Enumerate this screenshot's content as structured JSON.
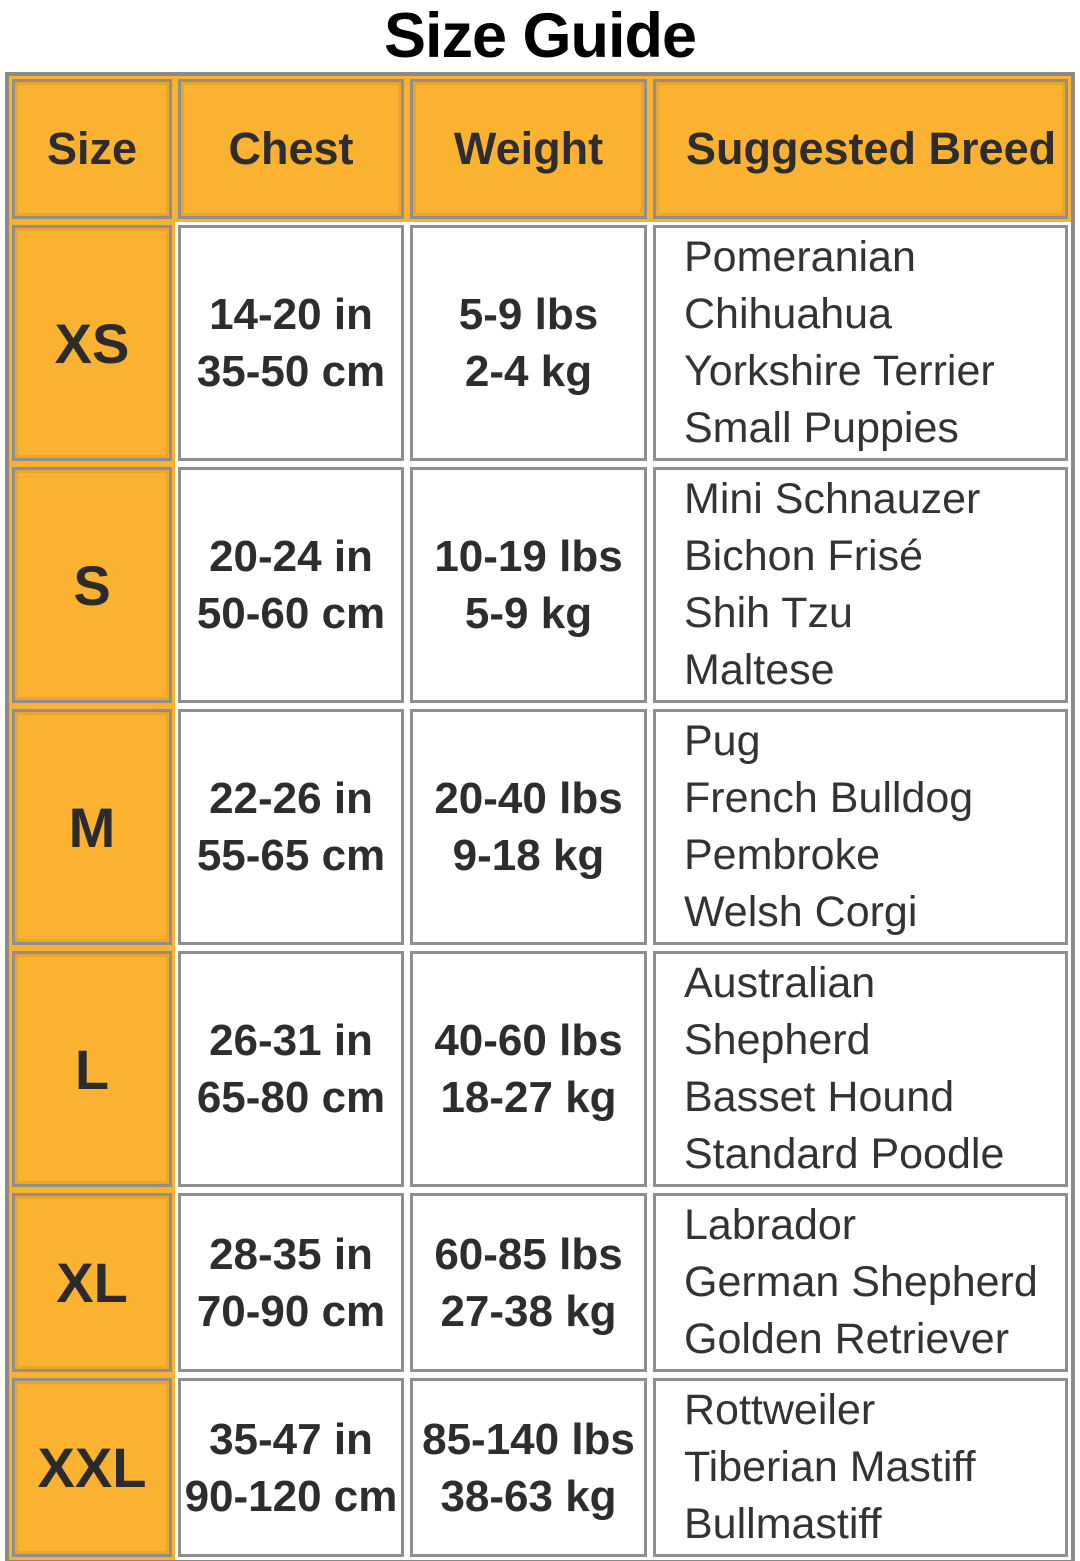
{
  "title": "Size Guide",
  "colors": {
    "accent_yellow": "#FBB231",
    "accent_yellow_dark": "#ECA42B",
    "border_gray": "#8A8A8A",
    "text_dark": "#2D2D2D"
  },
  "table": {
    "headers": {
      "size": "Size",
      "chest": "Chest",
      "weight": "Weight",
      "breed": "Suggested Breed"
    },
    "rows": [
      {
        "size": "XS",
        "chest": [
          "14-20 in",
          "35-50 cm"
        ],
        "weight": [
          "5-9 lbs",
          "2-4 kg"
        ],
        "breeds": [
          "Pomeranian",
          "Chihuahua",
          "Yorkshire Terrier",
          "Small Puppies"
        ]
      },
      {
        "size": "S",
        "chest": [
          "20-24 in",
          "50-60 cm"
        ],
        "weight": [
          "10-19 lbs",
          "5-9 kg"
        ],
        "breeds": [
          "Mini Schnauzer",
          "Bichon Frisé",
          "Shih Tzu",
          "Maltese"
        ]
      },
      {
        "size": "M",
        "chest": [
          "22-26 in",
          "55-65 cm"
        ],
        "weight": [
          "20-40 lbs",
          "9-18 kg"
        ],
        "breeds": [
          "Pug",
          "French Bulldog",
          "Pembroke",
          "Welsh Corgi"
        ]
      },
      {
        "size": "L",
        "chest": [
          "26-31 in",
          "65-80 cm"
        ],
        "weight": [
          "40-60 lbs",
          "18-27 kg"
        ],
        "breeds": [
          "Australian",
          "Shepherd",
          "Basset Hound",
          "Standard Poodle"
        ]
      },
      {
        "size": "XL",
        "chest": [
          "28-35 in",
          "70-90 cm"
        ],
        "weight": [
          "60-85 lbs",
          "27-38 kg"
        ],
        "breeds": [
          "Labrador",
          "German Shepherd",
          "Golden Retriever"
        ]
      },
      {
        "size": "XXL",
        "chest": [
          "35-47 in",
          "90-120 cm"
        ],
        "weight": [
          "85-140 lbs",
          "38-63 kg"
        ],
        "breeds": [
          "Rottweiler",
          "Tiberian Mastiff",
          "Bullmastiff"
        ]
      }
    ]
  }
}
